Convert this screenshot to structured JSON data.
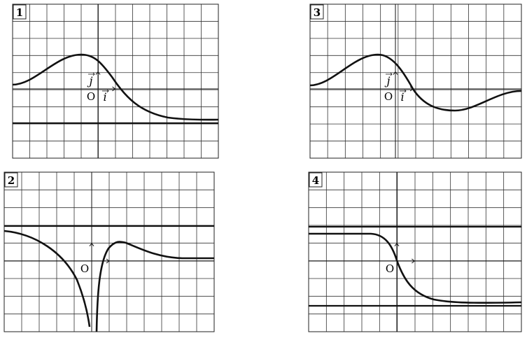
{
  "panels": [
    {
      "number": "1",
      "origin": "O",
      "vector_i": "i",
      "vector_j": "j"
    },
    {
      "number": "2",
      "origin": "O"
    },
    {
      "number": "3",
      "origin": "O",
      "vector_i": "i",
      "vector_j": "j"
    },
    {
      "number": "4",
      "origin": "O"
    }
  ]
}
